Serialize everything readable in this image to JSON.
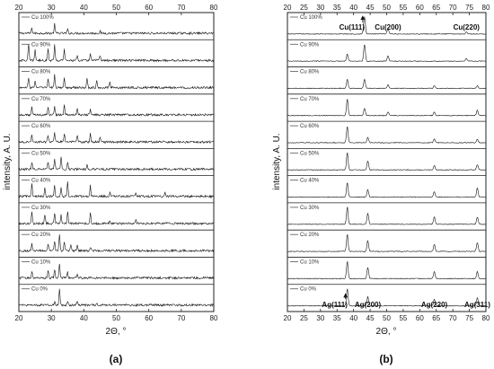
{
  "chart_data": [
    {
      "type": "line",
      "panel_label": "(a)",
      "xlabel": "2Θ, °",
      "ylabel": "intensity, A. U.",
      "xlim": [
        20,
        80
      ],
      "xticks": [
        "20",
        "30",
        "40",
        "50",
        "60",
        "70",
        "80"
      ],
      "series": [
        {
          "name": "Cu 100%",
          "peaks": [
            [
              24,
              0.3
            ],
            [
              31,
              0.5
            ],
            [
              35,
              0.2
            ],
            [
              45,
              0.1
            ]
          ]
        },
        {
          "name": "Cu 90%",
          "peaks": [
            [
              23,
              0.9
            ],
            [
              25,
              0.6
            ],
            [
              29,
              0.7
            ],
            [
              31,
              0.9
            ],
            [
              34,
              0.6
            ],
            [
              38,
              0.3
            ],
            [
              42,
              0.4
            ],
            [
              45,
              0.3
            ]
          ]
        },
        {
          "name": "Cu 80%",
          "peaks": [
            [
              23,
              0.5
            ],
            [
              25,
              0.4
            ],
            [
              29,
              0.5
            ],
            [
              31,
              0.7
            ],
            [
              34,
              0.5
            ],
            [
              41,
              0.5
            ],
            [
              44,
              0.4
            ],
            [
              48,
              0.3
            ]
          ]
        },
        {
          "name": "Cu 70%",
          "peaks": [
            [
              24,
              0.4
            ],
            [
              29,
              0.4
            ],
            [
              31,
              0.5
            ],
            [
              34,
              0.5
            ],
            [
              38,
              0.4
            ],
            [
              42,
              0.3
            ]
          ]
        },
        {
          "name": "Cu 60%",
          "peaks": [
            [
              24,
              0.4
            ],
            [
              29,
              0.4
            ],
            [
              31,
              0.5
            ],
            [
              34,
              0.5
            ],
            [
              38,
              0.4
            ],
            [
              42,
              0.5
            ],
            [
              45,
              0.3
            ]
          ]
        },
        {
          "name": "Cu 50%",
          "peaks": [
            [
              24,
              0.4
            ],
            [
              29,
              0.4
            ],
            [
              31,
              0.6
            ],
            [
              33,
              0.7
            ],
            [
              35,
              0.4
            ],
            [
              41,
              0.3
            ]
          ]
        },
        {
          "name": "Cu 40%",
          "peaks": [
            [
              24,
              0.7
            ],
            [
              28,
              0.5
            ],
            [
              31,
              0.6
            ],
            [
              33,
              0.5
            ],
            [
              35,
              0.8
            ],
            [
              42,
              0.6
            ],
            [
              48,
              0.2
            ],
            [
              56,
              0.2
            ],
            [
              65,
              0.2
            ]
          ]
        },
        {
          "name": "Cu 30%",
          "peaks": [
            [
              24,
              0.7
            ],
            [
              28,
              0.5
            ],
            [
              31,
              0.6
            ],
            [
              33,
              0.5
            ],
            [
              35,
              0.7
            ],
            [
              42,
              0.6
            ],
            [
              48,
              0.2
            ],
            [
              56,
              0.2
            ]
          ]
        },
        {
          "name": "Cu 20%",
          "peaks": [
            [
              24,
              0.4
            ],
            [
              29,
              0.4
            ],
            [
              31,
              0.5
            ],
            [
              32.5,
              0.95
            ],
            [
              34,
              0.5
            ],
            [
              36,
              0.3
            ],
            [
              38,
              0.3
            ],
            [
              42,
              0.2
            ]
          ]
        },
        {
          "name": "Cu 10%",
          "peaks": [
            [
              24,
              0.4
            ],
            [
              29,
              0.4
            ],
            [
              31,
              0.5
            ],
            [
              32.5,
              0.8
            ],
            [
              35,
              0.3
            ],
            [
              38,
              0.2
            ]
          ]
        },
        {
          "name": "Cu 0%",
          "peaks": [
            [
              31,
              0.2
            ],
            [
              32.5,
              0.95
            ],
            [
              35,
              0.2
            ],
            [
              38,
              0.2
            ],
            [
              44,
              0.1
            ]
          ]
        }
      ]
    },
    {
      "type": "line",
      "panel_label": "(b)",
      "xlabel": "2Θ, °",
      "ylabel": "intensity, A. U.",
      "xlim": [
        20,
        80
      ],
      "xticks": [
        "20",
        "25",
        "30",
        "35",
        "40",
        "45",
        "50",
        "55",
        "60",
        "65",
        "70",
        "75",
        "80"
      ],
      "series": [
        {
          "name": "Cu 100%",
          "peaks": [
            [
              43.3,
              1.0
            ],
            [
              50.4,
              0.3
            ],
            [
              74.1,
              0.12
            ]
          ]
        },
        {
          "name": "Cu 90%",
          "peaks": [
            [
              38.1,
              0.4
            ],
            [
              43.3,
              0.9
            ],
            [
              50.4,
              0.3
            ],
            [
              74.1,
              0.15
            ]
          ]
        },
        {
          "name": "Cu 80%",
          "peaks": [
            [
              38.1,
              0.5
            ],
            [
              43.3,
              0.5
            ],
            [
              50.4,
              0.2
            ],
            [
              64.4,
              0.15
            ],
            [
              77.4,
              0.15
            ]
          ]
        },
        {
          "name": "Cu 70%",
          "peaks": [
            [
              38.1,
              0.9
            ],
            [
              43.3,
              0.4
            ],
            [
              50.4,
              0.2
            ],
            [
              64.4,
              0.2
            ],
            [
              77.4,
              0.3
            ]
          ]
        },
        {
          "name": "Cu 60%",
          "peaks": [
            [
              38.1,
              0.9
            ],
            [
              44.3,
              0.3
            ],
            [
              64.4,
              0.2
            ],
            [
              77.4,
              0.2
            ]
          ]
        },
        {
          "name": "Cu 50%",
          "peaks": [
            [
              38.1,
              0.95
            ],
            [
              44.3,
              0.5
            ],
            [
              64.4,
              0.25
            ],
            [
              77.4,
              0.3
            ]
          ]
        },
        {
          "name": "Cu 40%",
          "peaks": [
            [
              38.1,
              0.8
            ],
            [
              44.3,
              0.4
            ],
            [
              64.4,
              0.3
            ],
            [
              77.4,
              0.5
            ]
          ]
        },
        {
          "name": "Cu 30%",
          "peaks": [
            [
              38.1,
              0.95
            ],
            [
              44.3,
              0.6
            ],
            [
              64.4,
              0.4
            ],
            [
              77.4,
              0.4
            ]
          ]
        },
        {
          "name": "Cu 20%",
          "peaks": [
            [
              38.1,
              0.95
            ],
            [
              44.3,
              0.6
            ],
            [
              64.4,
              0.4
            ],
            [
              77.4,
              0.5
            ]
          ]
        },
        {
          "name": "Cu 10%",
          "peaks": [
            [
              38.1,
              0.95
            ],
            [
              44.3,
              0.6
            ],
            [
              64.4,
              0.4
            ],
            [
              77.4,
              0.4
            ]
          ]
        },
        {
          "name": "Cu 0%",
          "peaks": [
            [
              38.1,
              0.95
            ],
            [
              44.3,
              0.5
            ],
            [
              64.4,
              0.35
            ],
            [
              77.4,
              0.45
            ]
          ]
        }
      ],
      "annotations": [
        {
          "text": "Cu(111)",
          "x": 43.3,
          "series": "Cu 100%",
          "arrow": true
        },
        {
          "text": "Cu(200)",
          "x": 50.4,
          "series": "Cu 100%"
        },
        {
          "text": "Cu(220)",
          "x": 74.1,
          "series": "Cu 100%"
        },
        {
          "text": "Ag(111)",
          "x": 38.1,
          "series": "Cu 0%",
          "arrow": true
        },
        {
          "text": "Ag(200)",
          "x": 44.3,
          "series": "Cu 0%"
        },
        {
          "text": "Ag(220)",
          "x": 64.4,
          "series": "Cu 0%"
        },
        {
          "text": "Ag(311)",
          "x": 77.4,
          "series": "Cu 0%"
        }
      ]
    }
  ]
}
